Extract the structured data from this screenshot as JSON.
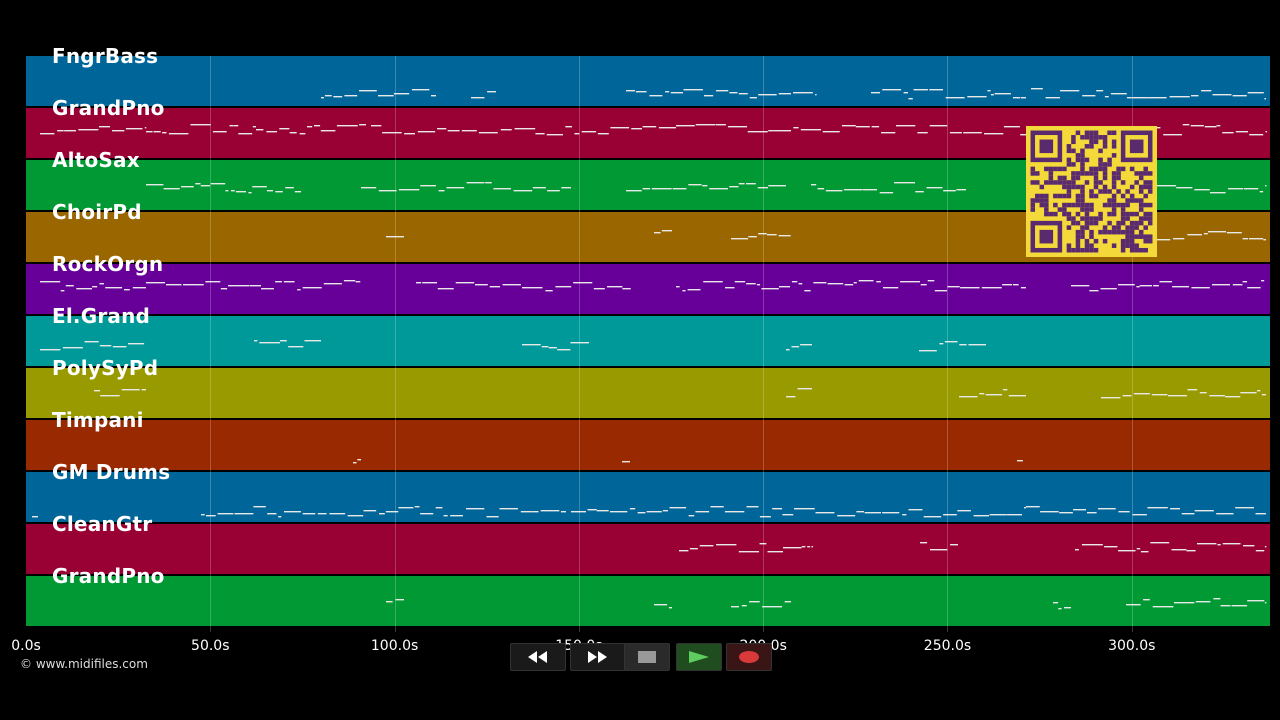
{
  "tracks": [
    {
      "name": "FngrBass",
      "color": "#006699"
    },
    {
      "name": "GrandPno",
      "color": "#990033"
    },
    {
      "name": "AltoSax",
      "color": "#009933"
    },
    {
      "name": "ChoirPd",
      "color": "#996600"
    },
    {
      "name": "RockOrgn",
      "color": "#660099"
    },
    {
      "name": "El.Grand",
      "color": "#009999"
    },
    {
      "name": "PolySyPd",
      "color": "#999900"
    },
    {
      "name": "Timpani",
      "color": "#992900"
    },
    {
      "name": "GM Drums",
      "color": "#006699"
    },
    {
      "name": "CleanGtr",
      "color": "#990033"
    },
    {
      "name": "GrandPno",
      "color": "#009933"
    }
  ],
  "timeline": {
    "max_seconds": 337.5,
    "ticks": [
      "0.0s",
      "50.0s",
      "100.0s",
      "150.0s",
      "200.0s",
      "250.0s",
      "300.0s"
    ]
  },
  "copyright": "© www.midifiles.com",
  "transport": {
    "rewind": "rewind-icon",
    "fast_forward": "fast-forward-icon",
    "stop": "stop-icon",
    "play": "play-icon",
    "record": "record-icon"
  },
  "colors": {
    "background": "#000000",
    "note": "#e8e8e8",
    "qr_fg": "#5a2a6e",
    "qr_bg": "#f4d93a"
  }
}
